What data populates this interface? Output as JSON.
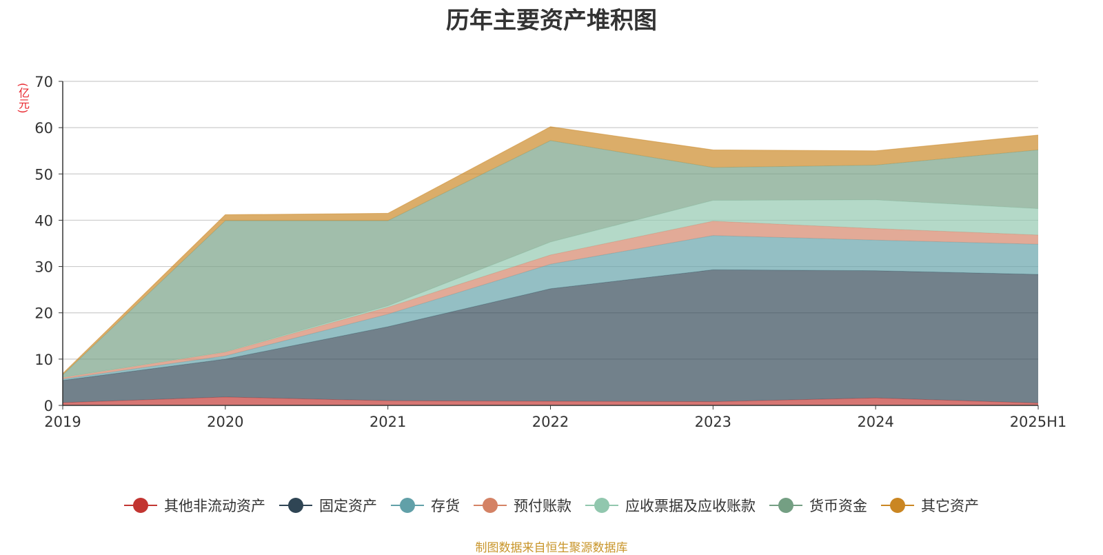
{
  "chart_data": {
    "type": "area",
    "stacked": true,
    "title": "历年主要资产堆积图",
    "ylabel": "(亿元)",
    "xlabel": "",
    "categories": [
      "2019",
      "2020",
      "2021",
      "2022",
      "2023",
      "2024",
      "2025H1"
    ],
    "ylim": [
      0,
      70
    ],
    "yticks": [
      0,
      10,
      20,
      30,
      40,
      50,
      60,
      70
    ],
    "grid": true,
    "legend_position": "bottom",
    "series": [
      {
        "name": "其他非流动资产",
        "color": "#c23531",
        "values": [
          0.6,
          1.8,
          1.0,
          0.9,
          0.8,
          1.6,
          0.5
        ]
      },
      {
        "name": "固定资产",
        "color": "#2f4554",
        "values": [
          4.8,
          8.2,
          16.0,
          24.3,
          28.5,
          27.5,
          27.8
        ]
      },
      {
        "name": "存货",
        "color": "#61a0a8",
        "values": [
          0.3,
          0.7,
          2.7,
          5.3,
          7.4,
          6.6,
          6.5
        ]
      },
      {
        "name": "预付账款",
        "color": "#d48265",
        "values": [
          0.3,
          0.8,
          1.5,
          2.0,
          3.1,
          2.5,
          2.0
        ]
      },
      {
        "name": "应收票据及应收账款",
        "color": "#91c7ae",
        "values": [
          0.1,
          0.1,
          0.3,
          2.8,
          4.5,
          6.2,
          5.7
        ]
      },
      {
        "name": "货币资金",
        "color": "#749f83",
        "values": [
          0.5,
          28.3,
          18.4,
          21.9,
          7.1,
          7.5,
          12.7
        ]
      },
      {
        "name": "其它资产",
        "color": "#ca8622",
        "values": [
          0.3,
          1.3,
          1.6,
          3.0,
          3.8,
          3.1,
          3.2
        ]
      }
    ]
  },
  "source": "制图数据来自恒生聚源数据库"
}
